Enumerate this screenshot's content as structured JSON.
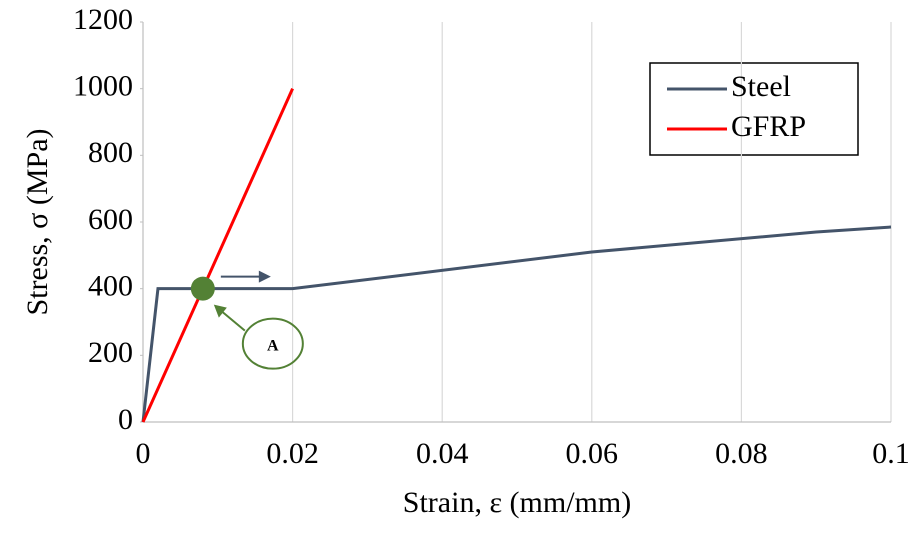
{
  "chart_data": {
    "type": "line",
    "x_label": "Strain, ε (mm/mm)",
    "y_label": "Stress, σ (MPa)",
    "series": [
      {
        "name": "Steel",
        "color": "#44546a",
        "x": [
          0,
          0.002,
          0.02,
          0.06,
          0.09,
          0.1
        ],
        "y": [
          0,
          400,
          400,
          510,
          570,
          585
        ]
      },
      {
        "name": "GFRP",
        "color": "#ff0000",
        "x": [
          0,
          0.02
        ],
        "y": [
          0,
          1000
        ]
      }
    ],
    "point": {
      "x": 0.008,
      "y": 400,
      "label": "A",
      "color": "#538135"
    },
    "xlim": [
      0,
      0.1
    ],
    "xticks": [
      0,
      0.02,
      0.04,
      0.06,
      0.08,
      0.1
    ],
    "ylim": [
      0,
      1200
    ],
    "yticks": [
      0,
      200,
      400,
      600,
      800,
      1000,
      1200
    ],
    "grid": "x",
    "legend": "upper right"
  }
}
